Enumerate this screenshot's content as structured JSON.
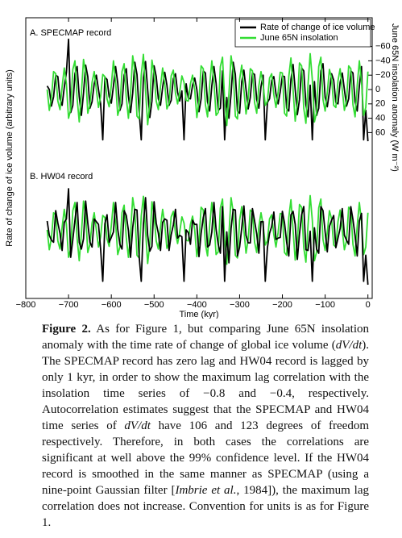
{
  "chart_data": [
    {
      "type": "line",
      "title": "A. SPECMAP record",
      "ylabel": "Rate of change of ice volume (arbitrary units)",
      "y2label": "June 65N insolation anomaly (W m⁻²)",
      "legend": "upper right",
      "invert_y": true,
      "ylim": [
        -100,
        100
      ],
      "y2lim": [
        -100,
        100
      ],
      "y2ticks": [
        {
          "value": -60,
          "label": "−60"
        },
        {
          "value": -40,
          "label": "−40"
        },
        {
          "value": -20,
          "label": "−20"
        },
        0,
        20,
        40,
        60
      ],
      "xlim": [
        -800,
        10
      ],
      "x": [
        -750,
        -745,
        -740,
        -735,
        -730,
        -725,
        -720,
        -715,
        -710,
        -705,
        -700,
        -695,
        -690,
        -685,
        -680,
        -675,
        -670,
        -665,
        -660,
        -655,
        -650,
        -645,
        -640,
        -635,
        -630,
        -625,
        -620,
        -615,
        -610,
        -605,
        -600,
        -595,
        -590,
        -585,
        -580,
        -575,
        -570,
        -565,
        -560,
        -555,
        -550,
        -545,
        -540,
        -535,
        -530,
        -525,
        -520,
        -515,
        -510,
        -505,
        -500,
        -495,
        -490,
        -485,
        -480,
        -475,
        -470,
        -465,
        -460,
        -455,
        -450,
        -445,
        -440,
        -435,
        -430,
        -425,
        -420,
        -415,
        -410,
        -405,
        -400,
        -395,
        -390,
        -385,
        -380,
        -375,
        -370,
        -365,
        -360,
        -355,
        -350,
        -345,
        -340,
        -335,
        -330,
        -325,
        -320,
        -315,
        -310,
        -305,
        -300,
        -295,
        -290,
        -285,
        -280,
        -275,
        -270,
        -265,
        -260,
        -255,
        -250,
        -245,
        -240,
        -235,
        -230,
        -225,
        -220,
        -215,
        -210,
        -205,
        -200,
        -195,
        -190,
        -185,
        -180,
        -175,
        -170,
        -165,
        -160,
        -155,
        -150,
        -145,
        -140,
        -135,
        -130,
        -125,
        -120,
        -115,
        -110,
        -105,
        -100,
        -95,
        -90,
        -85,
        -80,
        -75,
        -70,
        -65,
        -60,
        -55,
        -50,
        -45,
        -40,
        -35,
        -30,
        -25,
        -20,
        -15,
        -10,
        -5,
        0
      ],
      "series": [
        {
          "name": "Rate of change of ice volume",
          "color": "#000000",
          "axis": "y2",
          "values": [
            -5,
            0,
            23,
            10,
            -20,
            -18,
            13,
            22,
            -3,
            -24,
            -70,
            32,
            22,
            -22,
            -32,
            10,
            36,
            5,
            -34,
            -18,
            26,
            17,
            -8,
            -20,
            0,
            20,
            70,
            -17,
            -14,
            10,
            19,
            -5,
            -32,
            -9,
            29,
            20,
            -20,
            -29,
            9,
            32,
            5,
            -38,
            -21,
            30,
            70,
            -16,
            -39,
            0,
            39,
            16,
            -33,
            -18,
            13,
            22,
            -3,
            -24,
            -6,
            22,
            15,
            -15,
            -22,
            4,
            16,
            2,
            70,
            -8,
            12,
            13,
            -6,
            -16,
            0,
            31,
            13,
            -26,
            -23,
            17,
            30,
            -5,
            -32,
            -9,
            29,
            26,
            -26,
            70,
            11,
            40,
            6,
            -38,
            -21,
            30,
            33,
            -11,
            -27,
            0,
            27,
            11,
            -23,
            -21,
            14,
            26,
            -4,
            -20,
            70,
            18,
            13,
            -13,
            -18,
            6,
            20,
            3,
            -19,
            -18,
            26,
            30,
            -14,
            -35,
            0,
            35,
            14,
            -30,
            -26,
            21,
            38,
            -6,
            70,
            -11,
            36,
            26,
            -26,
            -36,
            11,
            24,
            3,
            -22,
            -13,
            18,
            20,
            -10,
            -23,
            0,
            23,
            13,
            -26,
            -23,
            17,
            30,
            -5,
            -32,
            70,
            29,
            72
          ]
        },
        {
          "name": "June 65N insolation",
          "color": "#33dd33",
          "axis": "y2",
          "values": [
            0,
            29,
            12,
            -25,
            -22,
            16,
            28,
            -4,
            -30,
            -8,
            40,
            28,
            -28,
            -40,
            12,
            45,
            6,
            -42,
            -23,
            33,
            21,
            -10,
            -25,
            0,
            25,
            10,
            -21,
            -18,
            13,
            24,
            -6,
            -40,
            -11,
            36,
            25,
            -25,
            -36,
            11,
            40,
            6,
            -47,
            -26,
            37,
            41,
            -20,
            -49,
            0,
            49,
            20,
            -41,
            -22,
            16,
            28,
            -4,
            -30,
            -8,
            27,
            19,
            -19,
            -27,
            5,
            20,
            3,
            -19,
            -10,
            15,
            16,
            -8,
            -20,
            0,
            39,
            16,
            -33,
            -29,
            21,
            38,
            -6,
            -40,
            -11,
            36,
            32,
            -32,
            -45,
            14,
            50,
            7,
            -47,
            -26,
            37,
            41,
            -14,
            -34,
            0,
            34,
            14,
            -29,
            -26,
            18,
            33,
            -5,
            -25,
            -7,
            22,
            16,
            -16,
            -22,
            7,
            25,
            4,
            -24,
            -23,
            33,
            37,
            -18,
            -44,
            0,
            44,
            18,
            -37,
            -33,
            26,
            47,
            -7,
            -50,
            -14,
            45,
            32,
            -32,
            -45,
            14,
            30,
            4,
            -28,
            -16,
            22,
            25,
            -12,
            -29,
            0,
            29,
            16,
            -33,
            -29,
            21,
            38,
            -6,
            -40,
            -11,
            36,
            25,
            -25
          ]
        }
      ]
    },
    {
      "type": "line",
      "title": "B. HW04 record",
      "xlabel": "Time (kyr)",
      "invert_y": true,
      "ylim": [
        -100,
        100
      ],
      "xlim": [
        -800,
        10
      ],
      "xticks": [
        {
          "value": -800,
          "label": "−800"
        },
        {
          "value": -700,
          "label": "−700"
        },
        {
          "value": -600,
          "label": "−600"
        },
        {
          "value": -500,
          "label": "−500"
        },
        {
          "value": -400,
          "label": "−400"
        },
        {
          "value": -300,
          "label": "−300"
        },
        {
          "value": -200,
          "label": "−200"
        },
        {
          "value": -100,
          "label": "−100"
        },
        0
      ],
      "x": [
        -750,
        -745,
        -740,
        -735,
        -730,
        -725,
        -720,
        -715,
        -710,
        -705,
        -700,
        -695,
        -690,
        -685,
        -680,
        -675,
        -670,
        -665,
        -660,
        -655,
        -650,
        -645,
        -640,
        -635,
        -630,
        -625,
        -620,
        -615,
        -610,
        -605,
        -600,
        -595,
        -590,
        -585,
        -580,
        -575,
        -570,
        -565,
        -560,
        -555,
        -550,
        -545,
        -540,
        -535,
        -530,
        -525,
        -520,
        -515,
        -510,
        -505,
        -500,
        -495,
        -490,
        -485,
        -480,
        -475,
        -470,
        -465,
        -460,
        -455,
        -450,
        -445,
        -440,
        -435,
        -430,
        -425,
        -420,
        -415,
        -410,
        -405,
        -400,
        -395,
        -390,
        -385,
        -380,
        -375,
        -370,
        -365,
        -360,
        -355,
        -350,
        -345,
        -340,
        -335,
        -330,
        -325,
        -320,
        -315,
        -310,
        -305,
        -300,
        -295,
        -290,
        -285,
        -280,
        -275,
        -270,
        -265,
        -260,
        -255,
        -250,
        -245,
        -240,
        -235,
        -230,
        -225,
        -220,
        -215,
        -210,
        -205,
        -200,
        -195,
        -190,
        -185,
        -180,
        -175,
        -170,
        -165,
        -160,
        -155,
        -150,
        -145,
        -140,
        -135,
        -130,
        -125,
        -120,
        -115,
        -110,
        -105,
        -100,
        -95,
        -90,
        -85,
        -80,
        -75,
        -70,
        -65,
        -60,
        -55,
        -50,
        -45,
        -40,
        -35,
        -30,
        -25,
        -20,
        -15,
        -10,
        -5,
        0
      ],
      "series": [
        {
          "color": "#33dd33",
          "values": [
            0,
            29,
            12,
            -25,
            -22,
            16,
            28,
            -4,
            -30,
            -8,
            40,
            28,
            -28,
            -40,
            12,
            45,
            6,
            -42,
            -23,
            33,
            21,
            -10,
            -25,
            0,
            25,
            10,
            -21,
            -18,
            13,
            24,
            -6,
            -40,
            -11,
            36,
            25,
            -25,
            -36,
            11,
            40,
            6,
            -47,
            -26,
            37,
            41,
            -20,
            -49,
            0,
            49,
            20,
            -41,
            -22,
            16,
            28,
            -4,
            -30,
            -8,
            27,
            19,
            -19,
            -27,
            5,
            20,
            3,
            -19,
            -10,
            15,
            16,
            -8,
            -20,
            0,
            39,
            16,
            -33,
            -29,
            21,
            38,
            -6,
            -40,
            -11,
            36,
            32,
            -32,
            -45,
            14,
            50,
            7,
            -47,
            -26,
            37,
            41,
            -14,
            -34,
            0,
            34,
            14,
            -29,
            -26,
            18,
            33,
            -5,
            -25,
            -7,
            22,
            16,
            -16,
            -22,
            7,
            25,
            4,
            -24,
            -23,
            33,
            37,
            -18,
            -44,
            0,
            44,
            18,
            -37,
            -33,
            26,
            47,
            -7,
            -50,
            -14,
            45,
            32,
            -32,
            -45,
            14,
            30,
            4,
            -28,
            -16,
            22,
            25,
            -12,
            -29,
            0,
            29,
            16,
            -33,
            -29,
            21,
            38,
            -6,
            -40,
            -11,
            36,
            25,
            -25
          ]
        },
        {
          "color": "#000000",
          "values": [
            -13,
            8,
            15,
            18,
            -28,
            -10,
            5,
            30,
            -11,
            -16,
            -60,
            40,
            14,
            -14,
            -40,
            18,
            28,
            13,
            -42,
            -10,
            18,
            25,
            -16,
            -12,
            -8,
            28,
            75,
            -9,
            -22,
            18,
            11,
            3,
            -40,
            -1,
            21,
            28,
            -28,
            -21,
            1,
            40,
            -3,
            -30,
            -29,
            38,
            75,
            -8,
            -47,
            8,
            31,
            24,
            -41,
            -10,
            5,
            30,
            -11,
            -16,
            -14,
            30,
            7,
            -7,
            -30,
            12,
            8,
            10,
            75,
            0,
            4,
            21,
            -14,
            -8,
            -8,
            39,
            5,
            -18,
            -31,
            25,
            22,
            3,
            -40,
            -1,
            21,
            34,
            -34,
            75,
            3,
            48,
            -2,
            -30,
            -29,
            38,
            25,
            -3,
            -35,
            8,
            19,
            19,
            -31,
            -13,
            6,
            34,
            -12,
            -12,
            75,
            26,
            5,
            -5,
            -26,
            14,
            12,
            11,
            -27,
            -10,
            18,
            38,
            -22,
            -27,
            -8,
            43,
            6,
            -22,
            -34,
            29,
            30,
            2,
            75,
            -3,
            28,
            34,
            -34,
            -28,
            3,
            32,
            -5,
            -14,
            -21,
            26,
            12,
            -2,
            -31,
            8,
            15,
            21,
            -34,
            -15,
            9,
            38,
            -13,
            -24,
            75,
            37,
            80
          ]
        }
      ]
    }
  ],
  "caption": {
    "parts": [
      "Figure 2.",
      " As for Figure 1, but comparing June 65N insolation anomaly with the time rate of change of global ice volume (",
      "dV/dt",
      "). The SPECMAP record has zero lag and HW04 record is lagged by only 1 kyr, in order to show the maximum lag correlation with the insolation time series of −0.8 and −0.4, respectively. Autocorrelation estimates suggest that the SPECMAP and HW04 time series of ",
      "dV/dt",
      " have 106 and 123 degrees of freedom respectively. Therefore, in both cases the correlations are significant at well above the 99% confidence level. If the HW04 record is smoothed in the same manner as SPECMAP (using a nine-point Gaussian filter [",
      "Imbrie et al.",
      ", 1984]), the maximum lag correlation does not increase. Convention for units is as for Figure 1."
    ]
  }
}
